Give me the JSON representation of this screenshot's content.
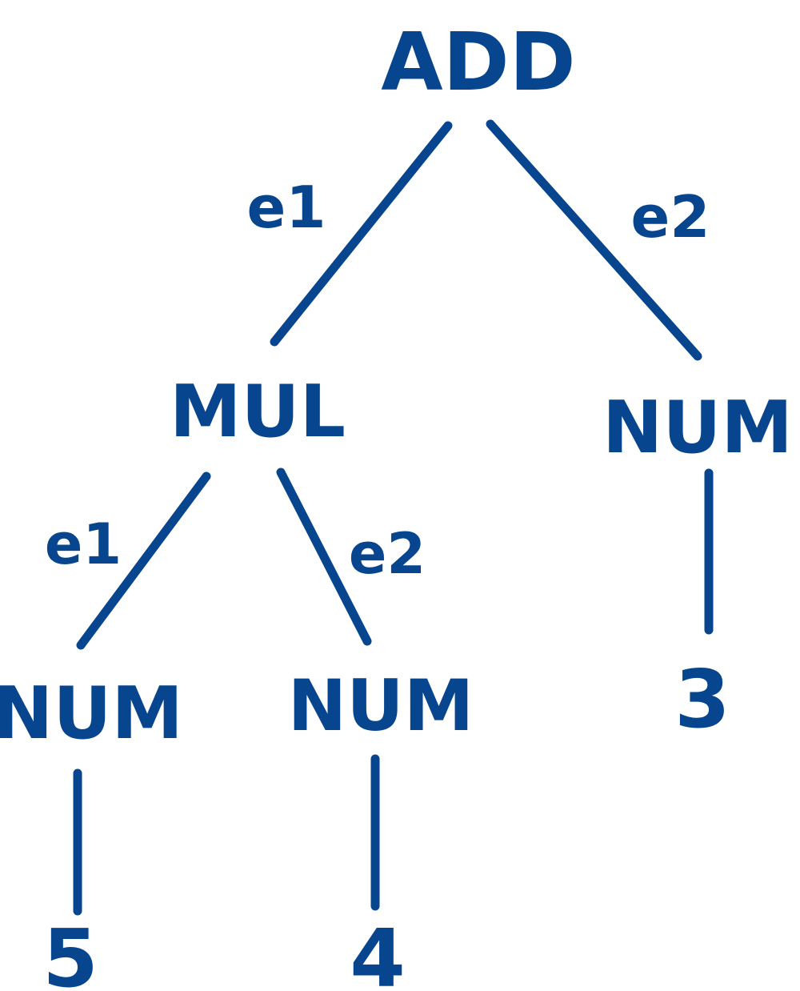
{
  "colors": {
    "ink": "#08458f"
  },
  "tree": {
    "root": {
      "label": "ADD",
      "left_edge_label": "e1",
      "right_edge_label": "e2"
    },
    "mul": {
      "label": "MUL",
      "left_edge_label": "e1",
      "right_edge_label": "e2"
    },
    "num_5": {
      "label": "NUM",
      "value": "5"
    },
    "num_4": {
      "label": "NUM",
      "value": "4"
    },
    "num_3": {
      "label": "NUM",
      "value": "3"
    }
  }
}
